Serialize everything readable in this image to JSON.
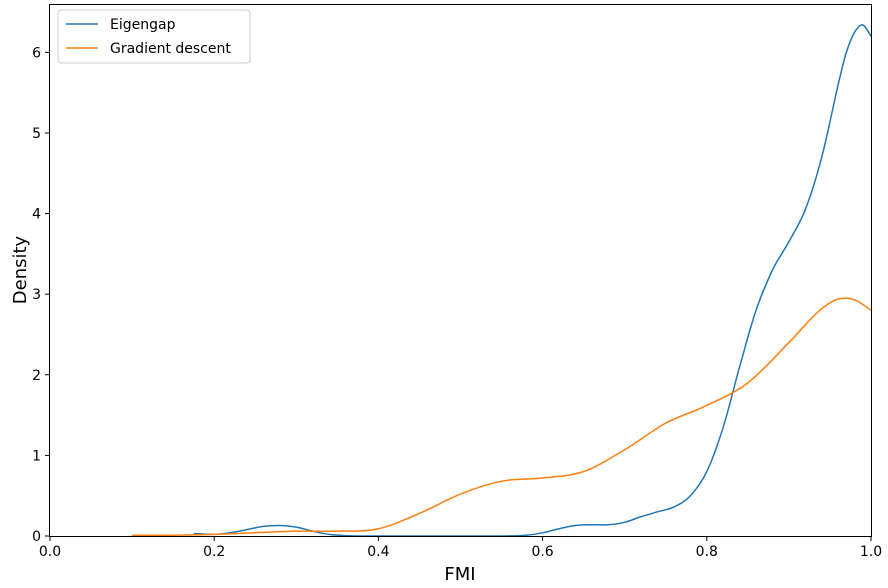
{
  "chart_data": {
    "type": "line",
    "title": "",
    "xlabel": "FMI",
    "ylabel": "Density",
    "xlim": [
      0.0,
      1.0
    ],
    "ylim": [
      0,
      6.6
    ],
    "xticks": [
      0.0,
      0.2,
      0.4,
      0.6,
      0.8,
      1.0
    ],
    "xtick_labels": [
      "0.0",
      "0.2",
      "0.4",
      "0.6",
      "0.8",
      "1.0"
    ],
    "yticks": [
      0,
      1,
      2,
      3,
      4,
      5,
      6
    ],
    "ytick_labels": [
      "0",
      "1",
      "2",
      "3",
      "4",
      "5",
      "6"
    ],
    "grid": false,
    "legend_position": "top-left",
    "series": [
      {
        "name": "Eigengap",
        "color": "#1f77b4",
        "x": [
          0.175,
          0.2,
          0.22,
          0.24,
          0.26,
          0.28,
          0.3,
          0.32,
          0.34,
          0.36,
          0.38,
          0.4,
          0.45,
          0.5,
          0.55,
          0.58,
          0.6,
          0.62,
          0.64,
          0.66,
          0.68,
          0.7,
          0.72,
          0.74,
          0.76,
          0.78,
          0.8,
          0.82,
          0.84,
          0.86,
          0.88,
          0.9,
          0.92,
          0.94,
          0.96,
          0.97,
          0.98,
          0.99,
          1.0
        ],
        "y": [
          0.03,
          0.02,
          0.04,
          0.08,
          0.12,
          0.13,
          0.11,
          0.06,
          0.02,
          0.005,
          0.0,
          0.0,
          0.0,
          0.0,
          0.0,
          0.01,
          0.04,
          0.09,
          0.13,
          0.14,
          0.14,
          0.17,
          0.24,
          0.3,
          0.36,
          0.5,
          0.8,
          1.35,
          2.1,
          2.8,
          3.3,
          3.65,
          4.05,
          4.7,
          5.6,
          6.0,
          6.25,
          6.34,
          6.2
        ]
      },
      {
        "name": "Gradient descent",
        "color": "#ff7f0e",
        "x": [
          0.1,
          0.15,
          0.2,
          0.25,
          0.3,
          0.35,
          0.4,
          0.45,
          0.5,
          0.55,
          0.6,
          0.65,
          0.7,
          0.75,
          0.8,
          0.85,
          0.9,
          0.92,
          0.94,
          0.96,
          0.98,
          1.0
        ],
        "y": [
          0.01,
          0.01,
          0.02,
          0.04,
          0.06,
          0.06,
          0.09,
          0.28,
          0.52,
          0.68,
          0.72,
          0.8,
          1.07,
          1.4,
          1.62,
          1.9,
          2.4,
          2.62,
          2.82,
          2.94,
          2.93,
          2.8
        ]
      }
    ]
  }
}
